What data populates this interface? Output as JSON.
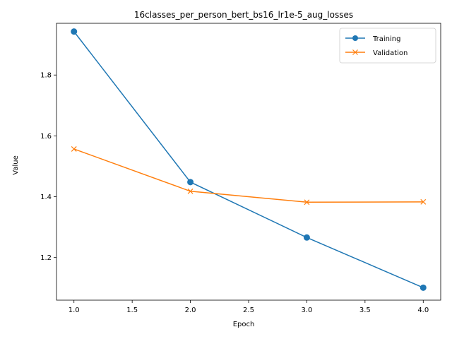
{
  "chart_data": {
    "type": "line",
    "title": "16classes_per_person_bert_bs16_lr1e-5_aug_losses",
    "xlabel": "Epoch",
    "ylabel": "Value",
    "xlim": [
      0.85,
      4.15
    ],
    "ylim": [
      1.06,
      1.97
    ],
    "x_ticks": [
      1.0,
      1.5,
      2.0,
      2.5,
      3.0,
      3.5,
      4.0
    ],
    "x_tick_labels": [
      "1.0",
      "1.5",
      "2.0",
      "2.5",
      "3.0",
      "3.5",
      "4.0"
    ],
    "y_ticks": [
      1.2,
      1.4,
      1.6,
      1.8
    ],
    "y_tick_labels": [
      "1.2",
      "1.4",
      "1.6",
      "1.8"
    ],
    "x": [
      1.0,
      2.0,
      3.0,
      4.0
    ],
    "series": [
      {
        "name": "Training",
        "values": [
          1.943,
          1.448,
          1.266,
          1.101
        ],
        "color": "#1f77b4",
        "marker": "circle"
      },
      {
        "name": "Validation",
        "values": [
          1.557,
          1.418,
          1.382,
          1.383
        ],
        "color": "#ff7f0e",
        "marker": "x"
      }
    ],
    "legend": {
      "position": "top-right"
    },
    "grid": false
  }
}
